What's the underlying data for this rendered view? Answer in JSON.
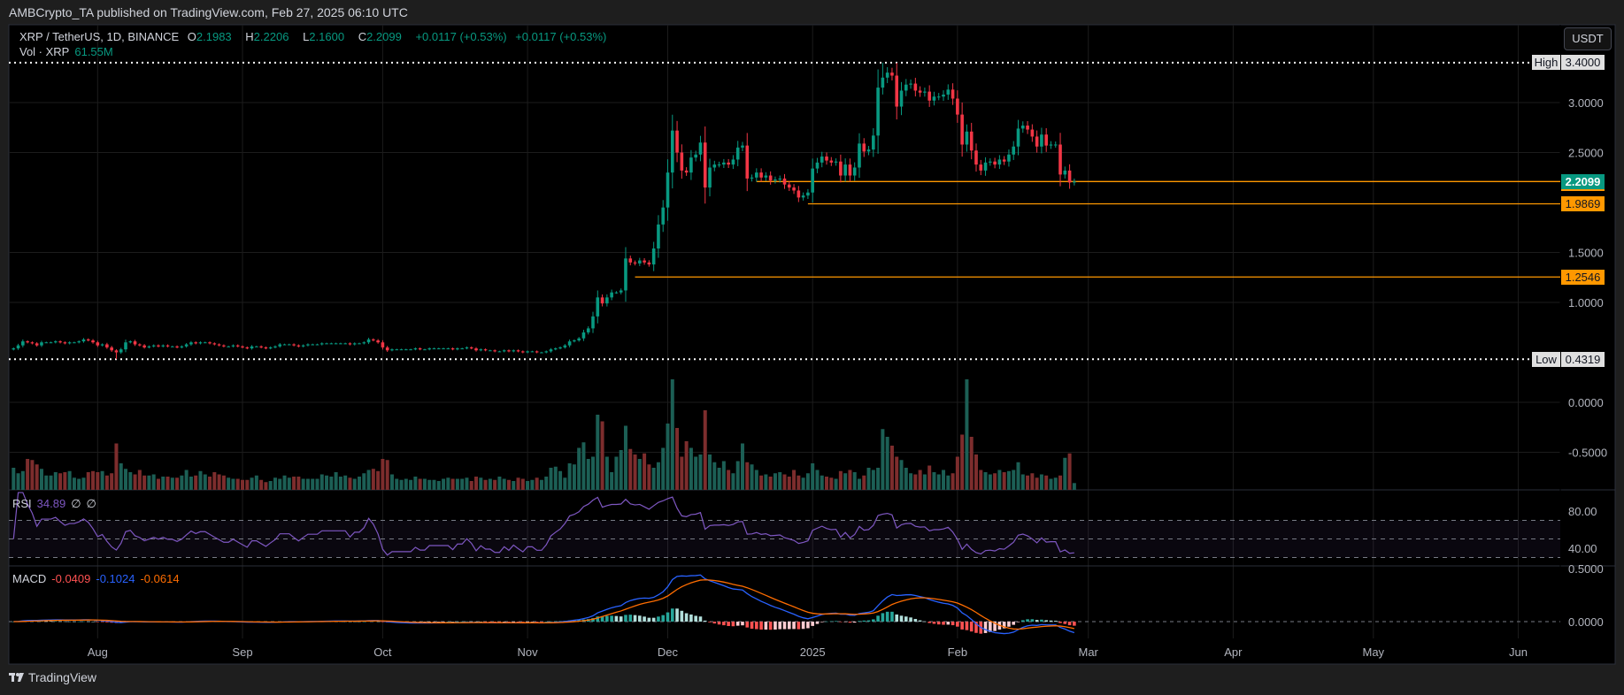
{
  "header": {
    "published": "AMBCrypto_TA published on TradingView.com, Feb 27, 2025 06:10 UTC"
  },
  "legend": {
    "symbol": "XRP / TetherUS, 1D, BINANCE",
    "o_label": "O",
    "o": "2.1983",
    "h_label": "H",
    "h": "2.2206",
    "l_label": "L",
    "l": "2.1600",
    "c_label": "C",
    "c": "2.2099",
    "change1": "+0.0117 (+0.53%)",
    "change2": "+0.0117 (+0.53%)",
    "vol_label": "Vol · XRP",
    "vol": "61.55M"
  },
  "rsi_legend": {
    "label": "RSI",
    "value": "34.89",
    "v2": "∅",
    "v3": "∅"
  },
  "macd_legend": {
    "label": "MACD",
    "hist": "-0.0409",
    "macd": "-0.1024",
    "signal": "-0.0614"
  },
  "currency_button": "USDT",
  "footer": {
    "brand": "TradingView"
  },
  "colors": {
    "up": "#089981",
    "down": "#f23645",
    "vol_up": "#1c5f55",
    "vol_down": "#7d2d2d",
    "level": "#ff9800",
    "rsi": "#7e57c2",
    "macd": "#2962ff",
    "signal": "#ff6d00"
  },
  "chart_data": {
    "type": "candlestick",
    "xlim": [
      "2024-07-13",
      "2025-06-10"
    ],
    "first_date": "2024-07-14",
    "x_ticks": [
      {
        "label": "Aug",
        "date": "2024-08-01"
      },
      {
        "label": "Sep",
        "date": "2024-09-01"
      },
      {
        "label": "Oct",
        "date": "2024-10-01"
      },
      {
        "label": "Nov",
        "date": "2024-11-01"
      },
      {
        "label": "Dec",
        "date": "2024-12-01"
      },
      {
        "label": "2025",
        "date": "2025-01-01"
      },
      {
        "label": "Feb",
        "date": "2025-02-01"
      },
      {
        "label": "Mar",
        "date": "2025-03-01"
      },
      {
        "label": "Apr",
        "date": "2025-04-01"
      },
      {
        "label": "May",
        "date": "2025-05-01"
      },
      {
        "label": "Jun",
        "date": "2025-06-01"
      }
    ],
    "price_ylim": [
      -0.876,
      3.779
    ],
    "price_ticks": [
      {
        "value": 3.0,
        "label": "3.0000"
      },
      {
        "value": 2.5,
        "label": "2.5000"
      },
      {
        "value": 1.5,
        "label": "1.5000"
      },
      {
        "value": 1.0,
        "label": "1.0000"
      },
      {
        "value": 0.0,
        "label": "0.0000"
      },
      {
        "value": -0.5,
        "label": "-0.5000"
      }
    ],
    "high": {
      "label": "High",
      "value": 3.4,
      "text": "3.4000",
      "date": "2025-01-16"
    },
    "low": {
      "label": "Low",
      "value": 0.4319,
      "text": "0.4319",
      "date": "2024-08-05"
    },
    "current_price": {
      "value": 2.2099,
      "text": "2.2099"
    },
    "levels": [
      {
        "value": 2.2099,
        "text": "2.2099",
        "from": "2024-12-20"
      },
      {
        "value": 1.9869,
        "text": "1.9869",
        "from": "2024-12-31"
      },
      {
        "value": 1.2546,
        "text": "1.2546",
        "from": "2024-11-24"
      }
    ],
    "closes": [
      0.54,
      0.57,
      0.61,
      0.6,
      0.59,
      0.57,
      0.6,
      0.6,
      0.6,
      0.61,
      0.6,
      0.59,
      0.6,
      0.6,
      0.61,
      0.63,
      0.62,
      0.6,
      0.57,
      0.58,
      0.55,
      0.52,
      0.5,
      0.53,
      0.6,
      0.61,
      0.58,
      0.57,
      0.55,
      0.56,
      0.57,
      0.56,
      0.57,
      0.56,
      0.56,
      0.55,
      0.56,
      0.58,
      0.6,
      0.59,
      0.6,
      0.6,
      0.59,
      0.58,
      0.57,
      0.56,
      0.56,
      0.57,
      0.56,
      0.55,
      0.54,
      0.56,
      0.56,
      0.55,
      0.54,
      0.55,
      0.56,
      0.58,
      0.58,
      0.58,
      0.57,
      0.56,
      0.57,
      0.58,
      0.58,
      0.58,
      0.59,
      0.59,
      0.59,
      0.59,
      0.59,
      0.59,
      0.58,
      0.59,
      0.59,
      0.6,
      0.63,
      0.62,
      0.6,
      0.55,
      0.52,
      0.53,
      0.53,
      0.53,
      0.53,
      0.53,
      0.54,
      0.53,
      0.53,
      0.54,
      0.54,
      0.54,
      0.54,
      0.54,
      0.53,
      0.54,
      0.54,
      0.55,
      0.54,
      0.52,
      0.53,
      0.52,
      0.52,
      0.51,
      0.51,
      0.52,
      0.51,
      0.52,
      0.51,
      0.5,
      0.51,
      0.51,
      0.5,
      0.5,
      0.51,
      0.53,
      0.54,
      0.55,
      0.57,
      0.61,
      0.62,
      0.64,
      0.7,
      0.74,
      0.86,
      1.05,
      0.99,
      1.05,
      1.1,
      1.1,
      1.12,
      1.44,
      1.4,
      1.39,
      1.42,
      1.4,
      1.38,
      1.54,
      1.78,
      1.95,
      2.3,
      2.72,
      2.5,
      2.32,
      2.3,
      2.45,
      2.48,
      2.6,
      2.15,
      2.35,
      2.38,
      2.38,
      2.4,
      2.38,
      2.43,
      2.55,
      2.57,
      2.24,
      2.25,
      2.3,
      2.25,
      2.27,
      2.22,
      2.23,
      2.24,
      2.18,
      2.15,
      2.12,
      2.05,
      2.07,
      2.1,
      2.34,
      2.4,
      2.46,
      2.42,
      2.4,
      2.41,
      2.27,
      2.38,
      2.27,
      2.35,
      2.59,
      2.51,
      2.53,
      2.67,
      3.15,
      3.25,
      3.3,
      3.27,
      2.96,
      3.12,
      3.18,
      3.19,
      3.12,
      3.1,
      3.11,
      3.02,
      3.06,
      3.06,
      3.08,
      3.13,
      3.04,
      2.88,
      2.58,
      2.71,
      2.52,
      2.38,
      2.32,
      2.4,
      2.41,
      2.38,
      2.43,
      2.41,
      2.48,
      2.56,
      2.74,
      2.77,
      2.73,
      2.66,
      2.56,
      2.68,
      2.57,
      2.58,
      2.58,
      2.28,
      2.32,
      2.2,
      2.2099
    ],
    "volumes_m": [
      200,
      150,
      170,
      280,
      270,
      230,
      190,
      130,
      130,
      160,
      150,
      160,
      170,
      110,
      100,
      110,
      160,
      170,
      160,
      170,
      130,
      150,
      420,
      240,
      190,
      160,
      140,
      180,
      130,
      130,
      140,
      100,
      120,
      120,
      110,
      110,
      130,
      180,
      120,
      130,
      170,
      140,
      120,
      160,
      140,
      130,
      110,
      100,
      100,
      90,
      90,
      110,
      130,
      90,
      70,
      80,
      110,
      100,
      130,
      110,
      120,
      120,
      100,
      100,
      100,
      100,
      140,
      130,
      120,
      160,
      120,
      130,
      110,
      100,
      120,
      150,
      180,
      190,
      170,
      280,
      270,
      140,
      100,
      90,
      100,
      90,
      120,
      100,
      100,
      90,
      90,
      80,
      100,
      110,
      100,
      100,
      100,
      110,
      80,
      120,
      110,
      90,
      100,
      90,
      120,
      100,
      90,
      80,
      110,
      100,
      80,
      90,
      110,
      90,
      120,
      200,
      210,
      170,
      110,
      240,
      230,
      380,
      430,
      280,
      300,
      680,
      620,
      300,
      160,
      300,
      360,
      580,
      370,
      320,
      280,
      330,
      230,
      200,
      250,
      380,
      600,
      1000,
      560,
      300,
      440,
      380,
      300,
      320,
      720,
      320,
      250,
      200,
      260,
      180,
      150,
      260,
      420,
      250,
      230,
      180,
      130,
      140,
      120,
      150,
      160,
      140,
      120,
      180,
      130,
      110,
      150,
      240,
      180,
      130,
      120,
      110,
      100,
      170,
      150,
      180,
      160,
      100,
      130,
      200,
      180,
      200,
      550,
      480,
      400,
      300,
      270,
      200,
      150,
      140,
      180,
      140,
      220,
      160,
      140,
      180,
      130,
      150,
      300,
      500,
      1000,
      480,
      320,
      180,
      160,
      140,
      150,
      180,
      160,
      170,
      180,
      250,
      140,
      130,
      150,
      110,
      140,
      130,
      100,
      110,
      130,
      290,
      330,
      61.55
    ],
    "rsi": {
      "ylim": [
        21,
        102.9
      ],
      "ticks": [
        {
          "value": 80,
          "label": "80.00"
        },
        {
          "value": 40,
          "label": "40.00"
        }
      ],
      "bands": [
        70,
        50,
        30
      ]
    },
    "macd": {
      "ylim": [
        -0.158,
        0.525
      ],
      "ticks": [
        {
          "value": 0.5,
          "label": "0.5000"
        },
        {
          "value": 0,
          "label": "0.0000"
        }
      ]
    }
  }
}
